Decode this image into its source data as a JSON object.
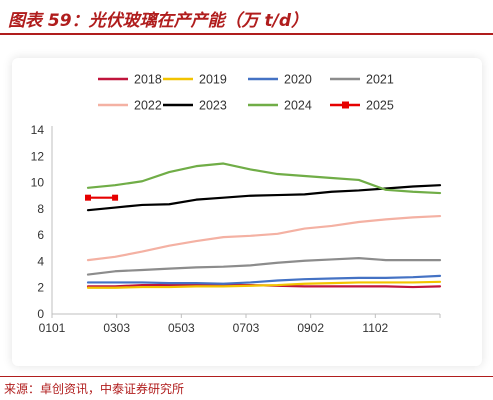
{
  "title": "图表 59：光伏玻璃在产产能（万 t/d）",
  "source": "来源：卓创资讯，中泰证券研究所",
  "chart_data": {
    "type": "line",
    "x_ticks": [
      "0101",
      "0303",
      "0503",
      "0703",
      "0902",
      "1102"
    ],
    "ylim": [
      0,
      14
    ],
    "y_ticks": [
      0,
      2,
      4,
      6,
      8,
      10,
      12,
      14
    ],
    "grid": false,
    "legend_position": "top",
    "series": [
      {
        "name": "2018",
        "color": "#c0143c",
        "values": [
          2.1,
          2.1,
          2.2,
          2.2,
          2.2,
          2.2,
          2.2,
          2.15,
          2.1,
          2.1,
          2.1,
          2.1,
          2.05,
          2.1
        ]
      },
      {
        "name": "2019",
        "color": "#f2c300",
        "values": [
          2.0,
          2.0,
          2.05,
          2.05,
          2.1,
          2.1,
          2.15,
          2.2,
          2.3,
          2.35,
          2.4,
          2.4,
          2.4,
          2.45
        ]
      },
      {
        "name": "2020",
        "color": "#4472c4",
        "values": [
          2.4,
          2.4,
          2.4,
          2.35,
          2.35,
          2.3,
          2.4,
          2.55,
          2.65,
          2.7,
          2.75,
          2.75,
          2.8,
          2.9
        ]
      },
      {
        "name": "2021",
        "color": "#8c8c8c",
        "values": [
          3.0,
          3.25,
          3.35,
          3.45,
          3.55,
          3.6,
          3.7,
          3.9,
          4.05,
          4.15,
          4.25,
          4.1,
          4.1,
          4.1
        ]
      },
      {
        "name": "2022",
        "color": "#f4b1a3",
        "values": [
          4.1,
          4.35,
          4.75,
          5.2,
          5.55,
          5.85,
          5.95,
          6.1,
          6.5,
          6.7,
          7.0,
          7.2,
          7.35,
          7.45
        ]
      },
      {
        "name": "2023",
        "color": "#000000",
        "values": [
          7.9,
          8.1,
          8.3,
          8.35,
          8.7,
          8.85,
          9.0,
          9.05,
          9.1,
          9.3,
          9.4,
          9.55,
          9.7,
          9.8
        ]
      },
      {
        "name": "2024",
        "color": "#70ad47",
        "values": [
          9.6,
          9.8,
          10.1,
          10.8,
          11.25,
          11.45,
          11.0,
          10.65,
          10.5,
          10.35,
          10.2,
          9.45,
          9.3,
          9.2
        ]
      },
      {
        "name": "2025",
        "color": "#e60000",
        "marker": "square",
        "values": [
          8.85,
          8.85
        ]
      }
    ]
  }
}
